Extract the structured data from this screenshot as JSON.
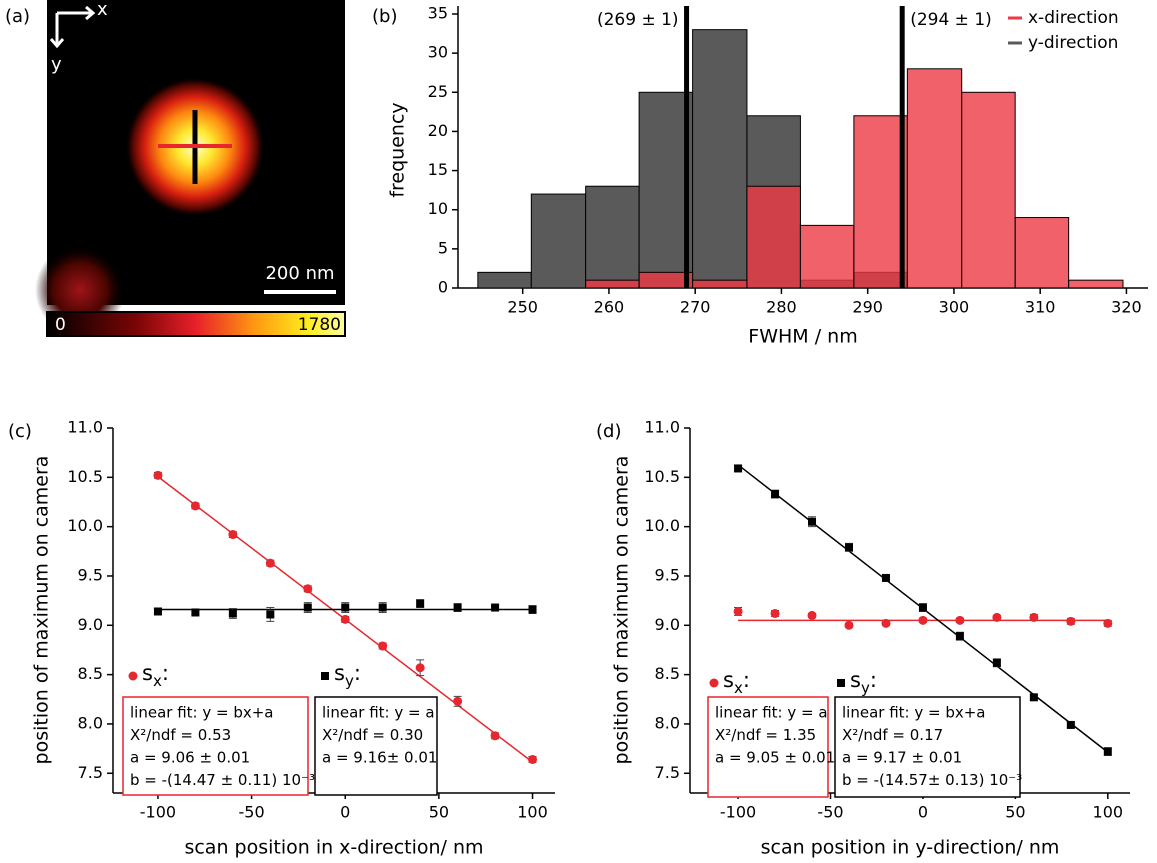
{
  "chart_data": [
    {
      "type": "image",
      "panel_label": "(a)",
      "x_arrow_label": "x",
      "y_arrow_label": "y",
      "scalebar_label": "200 nm",
      "clim": [
        0,
        1780
      ],
      "colorbar_ticks": [
        0,
        1780
      ]
    },
    {
      "type": "histogram",
      "panel_label": "(b)",
      "xlabel": "FWHM / nm",
      "ylabel": "frequency",
      "bins": [
        244.8,
        251.0,
        257.3,
        263.5,
        269.7,
        276.0,
        282.2,
        288.4,
        294.6,
        300.9,
        307.1,
        313.3,
        319.6
      ],
      "series": [
        {
          "name": "x-direction",
          "color": "#ee3a43",
          "values": [
            0,
            0,
            1,
            2,
            1,
            13,
            8,
            22,
            28,
            25,
            9,
            1
          ]
        },
        {
          "name": "y-direction",
          "color": "#5a5a5a",
          "values": [
            2,
            12,
            13,
            25,
            33,
            22,
            1,
            2,
            0,
            0,
            0,
            0
          ]
        }
      ],
      "vlines": [
        {
          "value": 269,
          "label": "(269 ± 1)"
        },
        {
          "value": 294,
          "label": "(294 ± 1)"
        }
      ],
      "xlim": [
        242.5,
        322.5
      ],
      "xticks": [
        250,
        260,
        270,
        280,
        290,
        300,
        310,
        320
      ],
      "ylim": [
        0,
        35
      ],
      "yticks": [
        0,
        5,
        10,
        15,
        20,
        25,
        30,
        35
      ],
      "legend": "upper right"
    },
    {
      "type": "scatter",
      "panel_label": "(c)",
      "xlabel": "scan position in x-direction/ nm",
      "ylabel": "position of maximum on camera",
      "x": [
        -100,
        -80,
        -60,
        -40,
        -20,
        0,
        20,
        40,
        60,
        80,
        100
      ],
      "series": [
        {
          "name": "s",
          "subscript": "x",
          "suffix": ":",
          "color": "#e8262e",
          "marker": "circle",
          "values": [
            10.52,
            10.21,
            9.92,
            9.63,
            9.37,
            9.06,
            8.79,
            8.57,
            8.23,
            7.88,
            7.64
          ],
          "errors": [
            0.03,
            0.03,
            0.03,
            0.03,
            0.03,
            0.03,
            0.03,
            0.08,
            0.05,
            0.03,
            0.03
          ],
          "fit": {
            "a": 9.06,
            "b": -0.01447
          },
          "box_lines": [
            "linear fit: y = bx+a",
            "X²/ndf = 0.53",
            "a = 9.06 ± 0.01",
            "b = -(14.47 ± 0.11) 10⁻³"
          ]
        },
        {
          "name": "s",
          "subscript": "y",
          "suffix": ":",
          "color": "#000000",
          "marker": "square",
          "values": [
            9.14,
            9.13,
            9.12,
            9.11,
            9.18,
            9.18,
            9.18,
            9.22,
            9.18,
            9.18,
            9.16
          ],
          "errors": [
            0.03,
            0.02,
            0.05,
            0.07,
            0.05,
            0.05,
            0.05,
            0.04,
            0.04,
            0.02,
            0.04
          ],
          "fit": {
            "a": 9.16,
            "b": 0
          },
          "box_lines": [
            "linear fit: y = a",
            "X²/ndf = 0.30",
            "a = 9.16± 0.01"
          ]
        }
      ],
      "xlim": [
        -124,
        112
      ],
      "xticks": [
        -100,
        -50,
        0,
        50,
        100
      ],
      "ylim": [
        7.3,
        11.0
      ],
      "yticks": [
        7.5,
        {
          "value": 8,
          "label": "8.0"
        },
        8.5,
        {
          "value": 9,
          "label": "9.0"
        },
        9.5,
        {
          "value": 10,
          "label": "10.0"
        },
        10.5,
        {
          "value": 11,
          "label": "11.0"
        }
      ]
    },
    {
      "type": "scatter",
      "panel_label": "(d)",
      "xlabel": "scan position in y-direction/ nm",
      "ylabel": "position of maximum on camera",
      "x": [
        -100,
        -80,
        -60,
        -40,
        -20,
        0,
        20,
        40,
        60,
        80,
        100
      ],
      "series": [
        {
          "name": "s",
          "subscript": "x",
          "suffix": ":",
          "color": "#e8262e",
          "marker": "circle",
          "values": [
            9.14,
            9.12,
            9.1,
            9.0,
            9.02,
            9.05,
            9.05,
            9.08,
            9.08,
            9.04,
            9.02
          ],
          "errors": [
            0.04,
            0.03,
            0.02,
            0.02,
            0.02,
            0.02,
            0.02,
            0.02,
            0.03,
            0.03,
            0.03
          ],
          "fit": {
            "a": 9.05,
            "b": 0
          },
          "box_lines": [
            "linear fit: y = a",
            "X²/ndf = 1.35",
            "a = 9.05 ± 0.01"
          ]
        },
        {
          "name": "s",
          "subscript": "y",
          "suffix": ":",
          "color": "#000000",
          "marker": "square",
          "values": [
            10.59,
            10.33,
            10.05,
            9.79,
            9.48,
            9.18,
            8.89,
            8.62,
            8.27,
            7.99,
            7.72
          ],
          "errors": [
            0.03,
            0.04,
            0.05,
            0.04,
            0.02,
            0.04,
            0.04,
            0.04,
            0.03,
            0.03,
            0.04
          ],
          "fit": {
            "a": 9.17,
            "b": -0.01457
          },
          "box_lines": [
            "linear fit: y = bx+a",
            "X²/ndf = 0.17",
            "a = 9.17 ± 0.01",
            "b = -(14.57± 0.13) 10⁻³"
          ]
        }
      ],
      "xlim": [
        -126,
        112
      ],
      "xticks": [
        -100,
        -50,
        0,
        50,
        100
      ],
      "ylim": [
        7.3,
        11.0
      ],
      "yticks": [
        7.5,
        {
          "value": 8,
          "label": "8.0"
        },
        8.5,
        {
          "value": 9,
          "label": "9.0"
        },
        9.5,
        {
          "value": 10,
          "label": "10.0"
        },
        10.5,
        {
          "value": 11,
          "label": "11.0"
        }
      ]
    }
  ]
}
